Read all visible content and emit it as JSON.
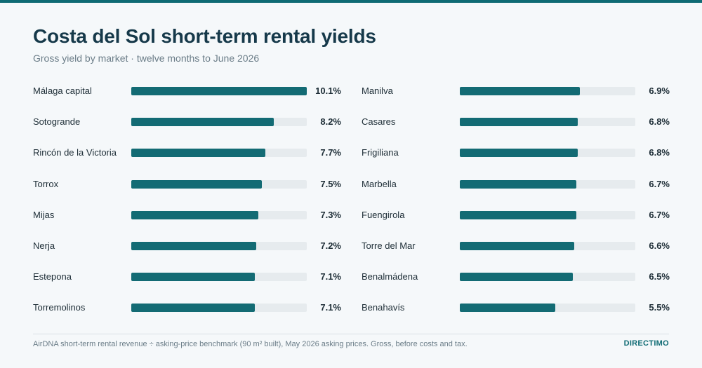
{
  "header": {
    "title": "Costa del Sol short-term rental yields",
    "subtitle": "Gross yield by market · twelve months to June 2026"
  },
  "footer": {
    "note": "AirDNA short-term rental revenue ÷ asking-price benchmark (90 m² built), May 2026 asking prices. Gross, before costs and tax.",
    "brand": "DIRECTIMO"
  },
  "colors": {
    "accent": "#0f6b74",
    "bar": "#136b74",
    "track": "#e6ebee",
    "title": "#16394a"
  },
  "chart_data": {
    "type": "bar",
    "orientation": "horizontal",
    "title": "Costa del Sol short-term rental yields",
    "subtitle": "Gross yield by market · twelve months to June 2026",
    "unit": "%",
    "xlim": [
      0,
      10.1
    ],
    "grid": false,
    "categories": [
      "Málaga capital",
      "Sotogrande",
      "Rincón de la Victoria",
      "Torrox",
      "Mijas",
      "Nerja",
      "Estepona",
      "Torremolinos",
      "Manilva",
      "Casares",
      "Frigiliana",
      "Marbella",
      "Fuengirola",
      "Torre del Mar",
      "Benalmádena",
      "Benahavís"
    ],
    "values": [
      10.1,
      8.2,
      7.7,
      7.5,
      7.3,
      7.2,
      7.1,
      7.1,
      6.9,
      6.8,
      6.8,
      6.7,
      6.7,
      6.6,
      6.5,
      5.5
    ],
    "labels": [
      "10.1%",
      "8.2%",
      "7.7%",
      "7.5%",
      "7.3%",
      "7.2%",
      "7.1%",
      "7.1%",
      "6.9%",
      "6.8%",
      "6.8%",
      "6.7%",
      "6.7%",
      "6.6%",
      "6.5%",
      "5.5%"
    ]
  }
}
